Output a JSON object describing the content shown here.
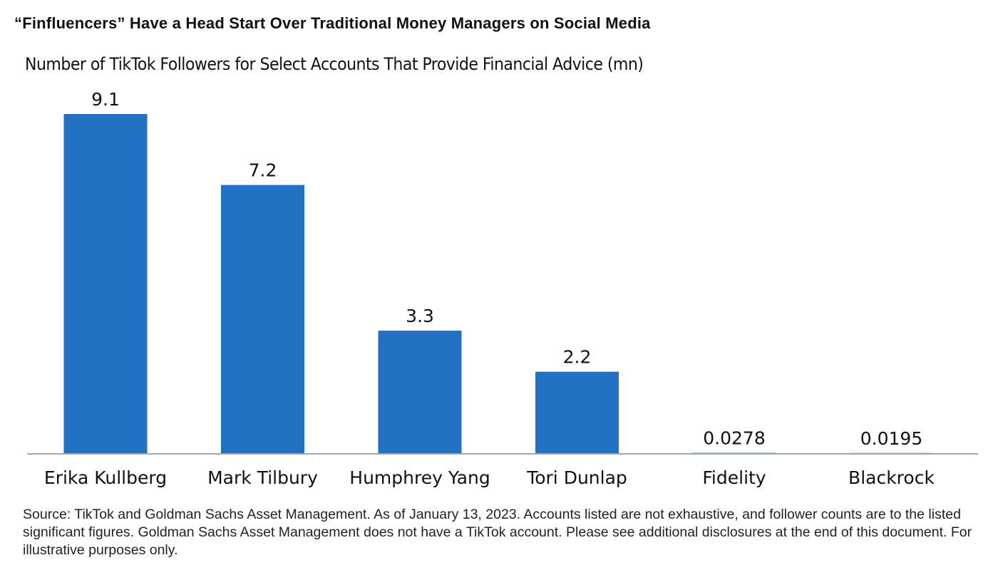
{
  "title": "“Finfluencers” Have a Head Start Over Traditional Money Managers on Social Media",
  "source_note": "Source: TikTok and Goldman Sachs Asset Management. As of January 13, 2023. Accounts listed are not exhaustive, and follower counts are to the listed significant figures. Goldman Sachs Asset Management does not have a TikTok account. Please see additional disclosures at the end of this document. For illustrative purposes only.",
  "chart_data": {
    "type": "bar",
    "title": "Number of TikTok Followers for Select Accounts That Provide Financial Advice (mn)",
    "xlabel": "",
    "ylabel": "",
    "categories": [
      "Erika Kullberg",
      "Mark Tilbury",
      "Humphrey Yang",
      "Tori Dunlap",
      "Fidelity",
      "Blackrock"
    ],
    "values": [
      9.1,
      7.2,
      3.3,
      2.2,
      0.0278,
      0.0195
    ],
    "value_labels": [
      "9.1",
      "7.2",
      "3.3",
      "2.2",
      "0.0278",
      "0.0195"
    ],
    "ylim": [
      0,
      9.1
    ],
    "grid": false,
    "legend": "none",
    "colors": {
      "bar": "#2272c3",
      "axis": "#9ea7b3",
      "text": "#111111"
    }
  }
}
